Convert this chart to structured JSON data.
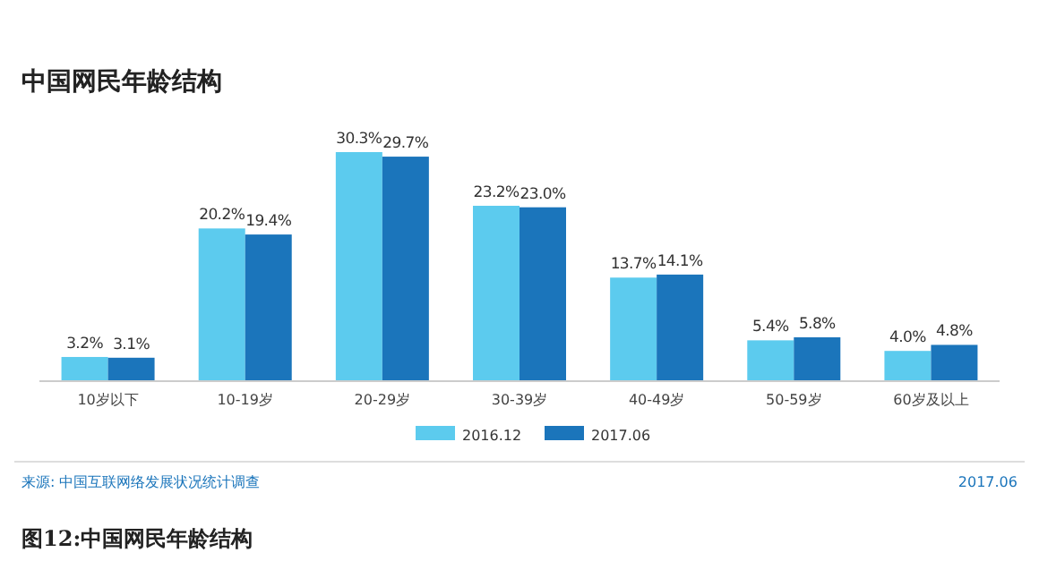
{
  "chart_data": {
    "type": "bar",
    "title": "中国网民年龄结构",
    "categories": [
      "10岁以下",
      "10-19岁",
      "20-29岁",
      "30-39岁",
      "40-49岁",
      "50-59岁",
      "60岁及以上"
    ],
    "series": [
      {
        "name": "2016.12",
        "color": "#5ccbee",
        "values": [
          3.2,
          20.2,
          30.3,
          23.2,
          13.7,
          5.4,
          4.0
        ],
        "value_labels": [
          "3.2%",
          "20.2%",
          "30.3%",
          "23.2%",
          "13.7%",
          "5.4%",
          "4.0%"
        ]
      },
      {
        "name": "2017.06",
        "color": "#1b75bb",
        "values": [
          3.1,
          19.4,
          29.7,
          23.0,
          14.1,
          5.8,
          4.8
        ],
        "value_labels": [
          "3.1%",
          "19.4%",
          "29.7%",
          "23.0%",
          "14.1%",
          "5.8%",
          "4.8%"
        ]
      }
    ],
    "legend": "bottom",
    "annotations": [
      "来源: 中国互联网络发展状况统计调查",
      "2017.06",
      "图12:中国网民年龄结构"
    ]
  }
}
